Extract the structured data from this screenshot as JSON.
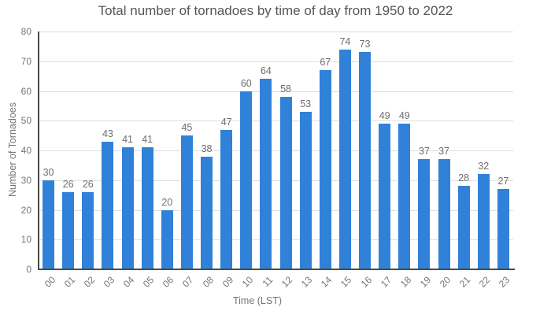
{
  "chart_data": {
    "type": "bar",
    "title": "Total number of tornadoes by time of day from 1950 to 2022",
    "xlabel": "Time (LST)",
    "ylabel": "Number of Tornadoes",
    "categories": [
      "00",
      "01",
      "02",
      "03",
      "04",
      "05",
      "06",
      "07",
      "08",
      "09",
      "10",
      "11",
      "12",
      "13",
      "14",
      "15",
      "16",
      "17",
      "18",
      "19",
      "20",
      "21",
      "22",
      "23"
    ],
    "values": [
      30,
      26,
      26,
      43,
      41,
      41,
      20,
      45,
      38,
      47,
      60,
      64,
      58,
      53,
      67,
      74,
      73,
      49,
      49,
      37,
      37,
      28,
      32,
      27
    ],
    "ylim": [
      0,
      80
    ],
    "ytick_step": 10,
    "grid": true,
    "value_labels": true,
    "legend": "none",
    "x_tick_rotation_deg": -45
  },
  "colors": {
    "bar": "#2F82D8",
    "title": "#55565A",
    "tick": "#757575",
    "value_label": "#6E6E6E",
    "grid": "#DEDEDE",
    "axis": "#4A4A4A",
    "background": "#FFFFFF"
  }
}
